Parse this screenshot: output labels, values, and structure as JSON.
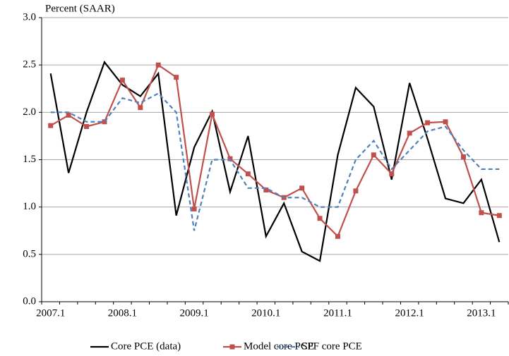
{
  "chart_data": {
    "type": "line",
    "y_label": "Percent (SAAR)",
    "categories": [
      "2007.1",
      null,
      null,
      null,
      "2008.1",
      null,
      null,
      null,
      "2009.1",
      null,
      null,
      null,
      "2010.1",
      null,
      null,
      null,
      "2011.1",
      null,
      null,
      null,
      "2012.1",
      null,
      null,
      null,
      "2013.1",
      null
    ],
    "series": [
      {
        "name": "Core PCE (data)",
        "color": "#000000",
        "style": "solid",
        "marker": false,
        "values": [
          2.41,
          1.36,
          2.0,
          2.53,
          2.29,
          2.17,
          2.41,
          0.91,
          1.63,
          2.01,
          1.16,
          1.75,
          0.69,
          1.04,
          0.53,
          0.43,
          1.55,
          2.26,
          2.06,
          1.29,
          2.31,
          1.72,
          1.09,
          1.04,
          1.29,
          0.63
        ]
      },
      {
        "name": "Model core PCE",
        "color": "#c0504d",
        "style": "solid",
        "marker": true,
        "values": [
          1.86,
          1.97,
          1.85,
          1.9,
          2.34,
          2.05,
          2.5,
          2.37,
          0.98,
          1.98,
          1.51,
          1.35,
          1.18,
          1.1,
          1.2,
          0.88,
          0.69,
          1.17,
          1.55,
          1.35,
          1.78,
          1.89,
          1.9,
          1.53,
          0.94,
          0.91
        ]
      },
      {
        "name": "SPF core PCE",
        "color": "#4f81bd",
        "style": "dashed",
        "marker": false,
        "values": [
          2.0,
          2.0,
          1.9,
          1.9,
          2.15,
          2.1,
          2.2,
          2.0,
          0.75,
          1.5,
          1.5,
          1.2,
          1.2,
          1.1,
          1.1,
          1.0,
          1.0,
          1.5,
          1.7,
          1.4,
          1.6,
          1.8,
          1.85,
          1.6,
          1.4,
          1.4
        ]
      }
    ],
    "ylim": [
      0,
      3
    ],
    "yticks": [
      {
        "value": 0,
        "label": "0.0"
      },
      0.5,
      {
        "value": 1,
        "label": "1.0"
      },
      1.5,
      {
        "value": 2,
        "label": "2.0"
      },
      2.5,
      {
        "value": 3,
        "label": "3.0"
      }
    ],
    "grid": true,
    "legend": "bottom"
  }
}
